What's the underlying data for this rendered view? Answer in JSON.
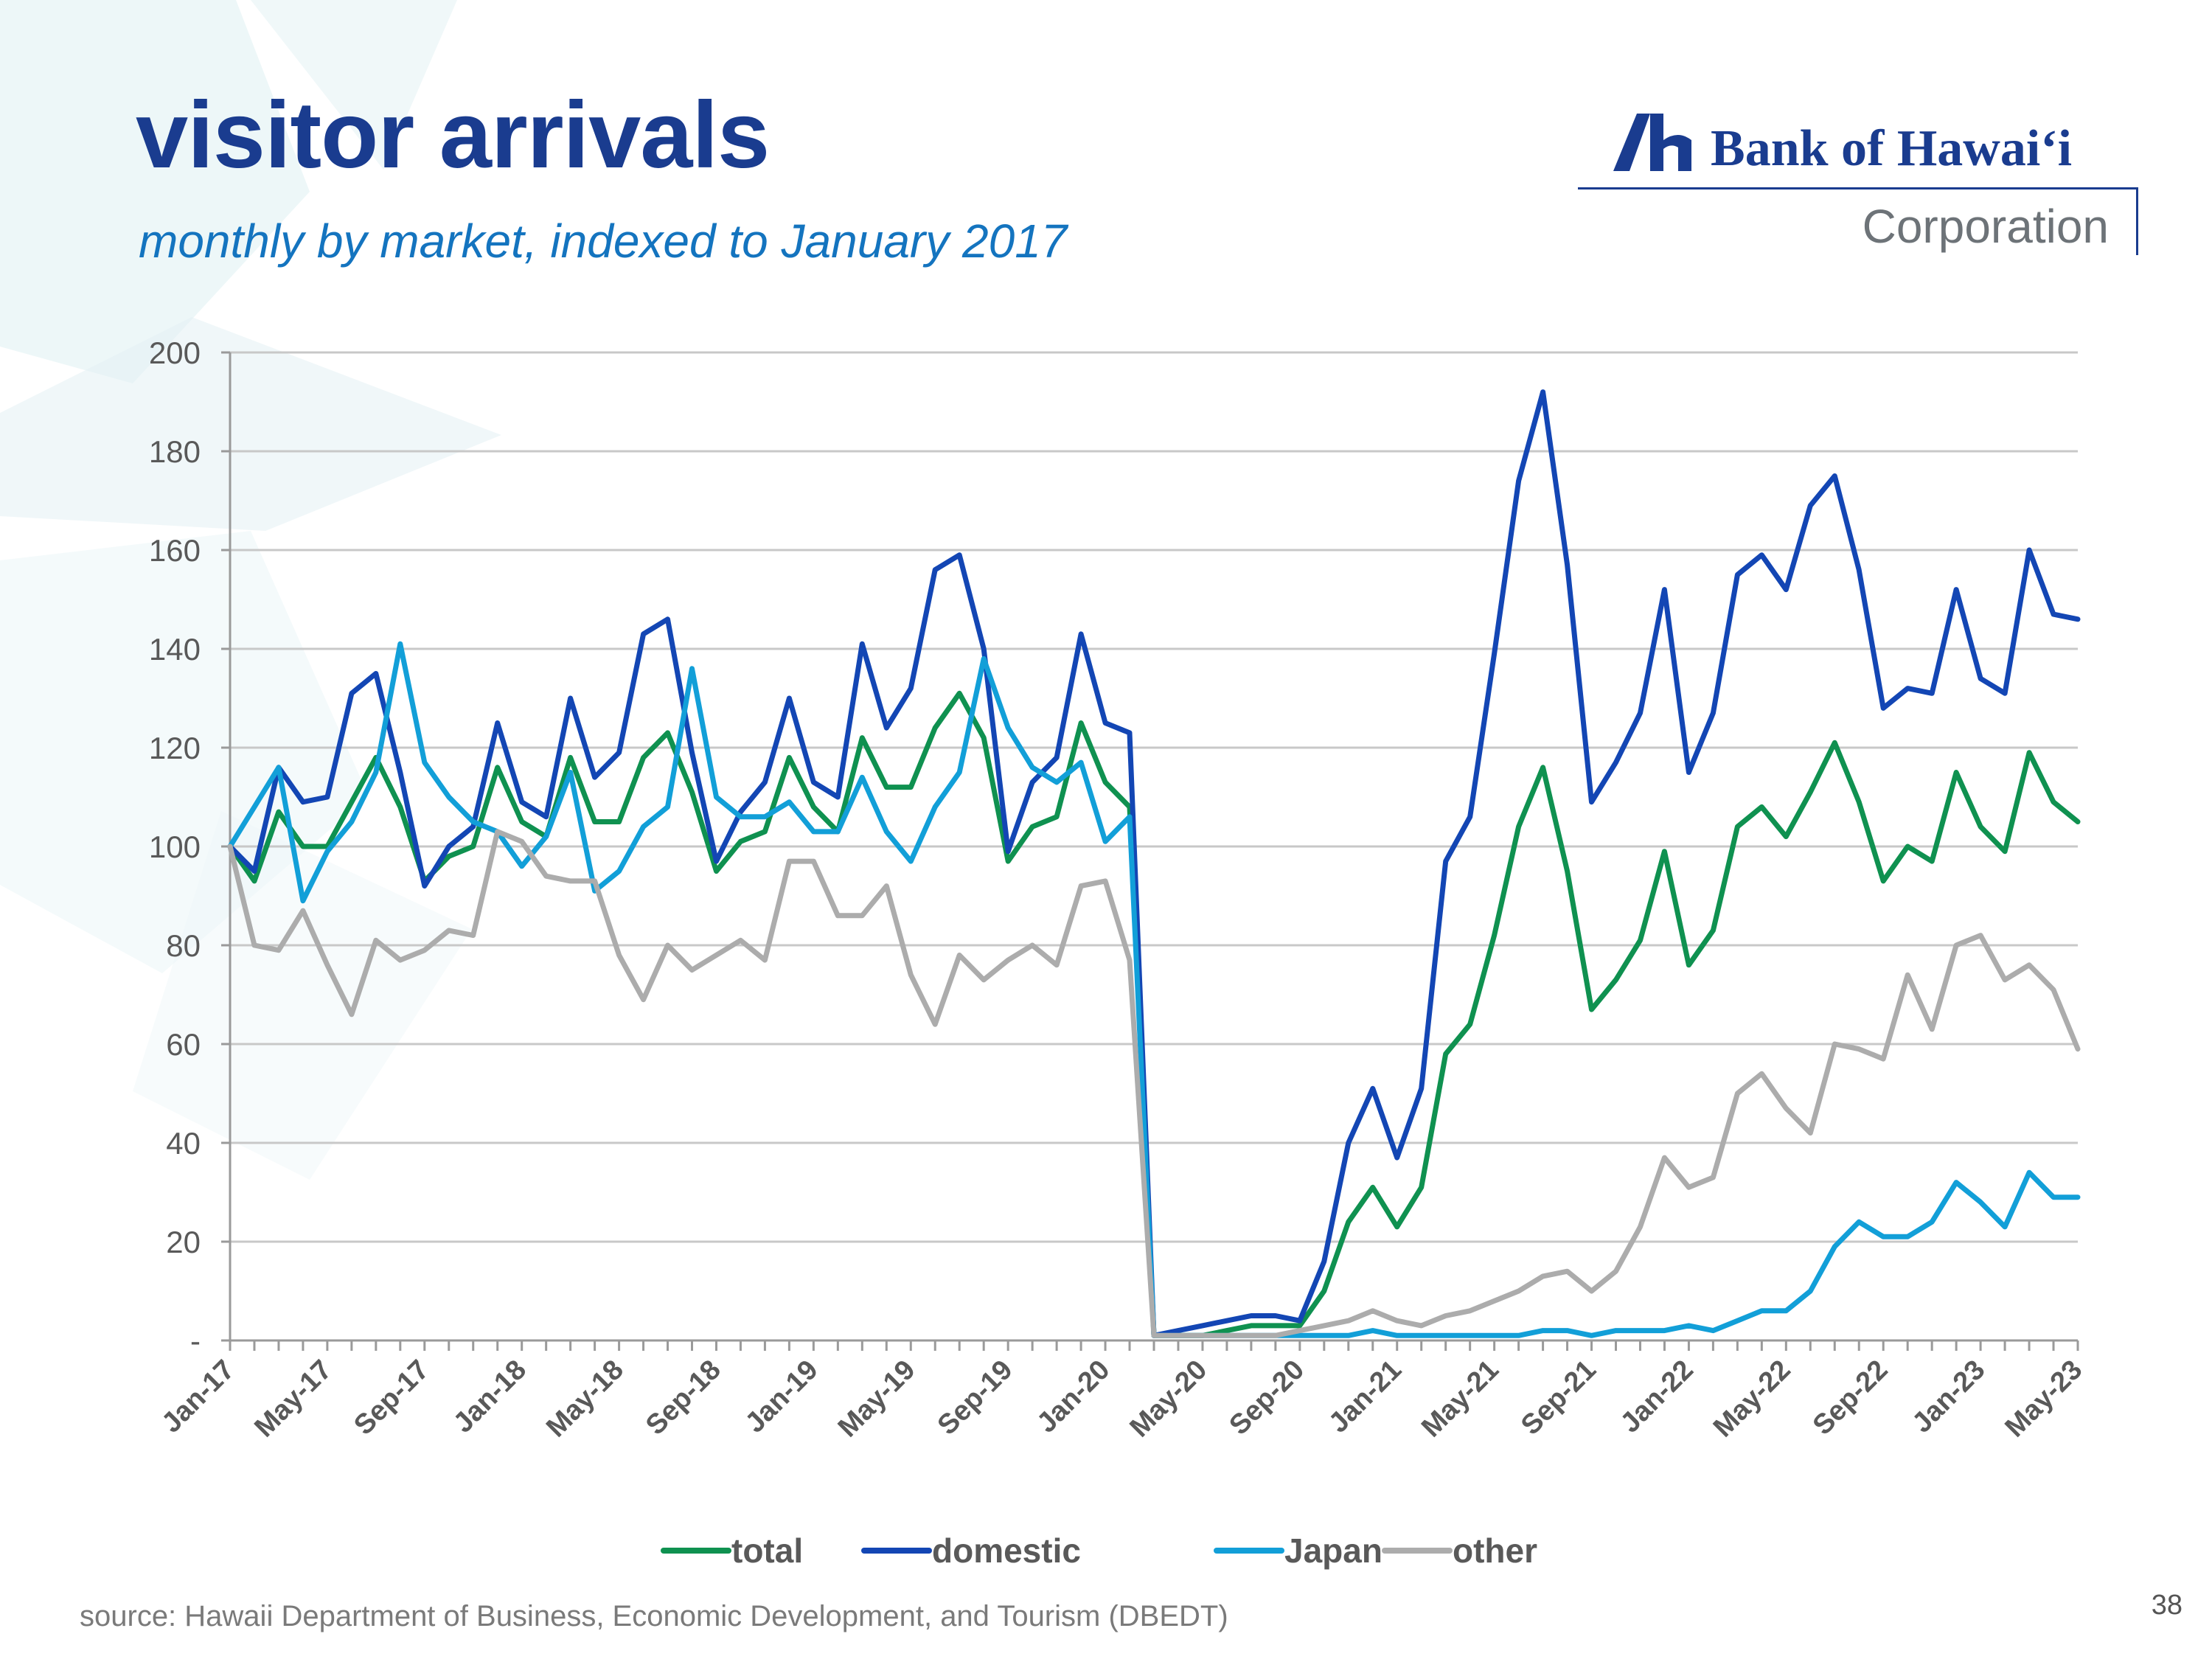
{
  "slide": {
    "title": "visitor arrivals",
    "subtitle": "monthly by market, indexed to January 2017",
    "source": "source: Hawaii Department of Business, Economic Development, and Tourism (DBEDT)",
    "page_number": "38"
  },
  "logo": {
    "name": "Bank of Hawaiʻi",
    "corporation": "Corporation",
    "color": "#1a3c8f"
  },
  "chart_data": {
    "type": "line",
    "title": "",
    "xlabel": "",
    "ylabel": "",
    "ylim": [
      0,
      200
    ],
    "yticks": [
      0,
      20,
      40,
      60,
      80,
      100,
      120,
      140,
      160,
      180,
      200
    ],
    "ytick_labels": [
      "-",
      "20",
      "40",
      "60",
      "80",
      "100",
      "120",
      "140",
      "160",
      "180",
      "200"
    ],
    "xtick_labels": [
      "Jan-17",
      "May-17",
      "Sep-17",
      "Jan-18",
      "May-18",
      "Sep-18",
      "Jan-19",
      "May-19",
      "Sep-19",
      "Jan-20",
      "May-20",
      "Sep-20",
      "Jan-21",
      "May-21",
      "Sep-21",
      "Jan-22",
      "May-22",
      "Sep-22",
      "Jan-23",
      "May-23"
    ],
    "xtick_every": 4,
    "grid": true,
    "legend_position": "bottom",
    "series": [
      {
        "name": "total",
        "color": "#0f9150",
        "values": [
          100,
          93,
          107,
          100,
          100,
          109,
          118,
          108,
          93,
          98,
          100,
          116,
          105,
          102,
          118,
          105,
          105,
          118,
          123,
          111,
          95,
          101,
          103,
          118,
          108,
          103,
          122,
          112,
          112,
          124,
          131,
          122,
          97,
          104,
          106,
          125,
          113,
          108,
          1,
          1,
          1,
          2,
          3,
          3,
          3,
          10,
          24,
          31,
          23,
          31,
          58,
          64,
          82,
          104,
          116,
          95,
          67,
          73,
          81,
          99,
          76,
          83,
          104,
          108,
          102,
          111,
          121,
          109,
          93,
          100,
          97,
          115,
          104,
          99,
          119,
          109,
          105
        ]
      },
      {
        "name": "domestic",
        "color": "#1346b4",
        "values": [
          100,
          95,
          116,
          109,
          110,
          131,
          135,
          115,
          92,
          100,
          104,
          125,
          109,
          106,
          130,
          114,
          119,
          143,
          146,
          119,
          97,
          107,
          113,
          130,
          113,
          110,
          141,
          124,
          132,
          156,
          159,
          140,
          99,
          113,
          118,
          143,
          125,
          123,
          1,
          2,
          3,
          4,
          5,
          5,
          4,
          16,
          40,
          51,
          37,
          51,
          97,
          106,
          139,
          174,
          192,
          157,
          109,
          117,
          127,
          152,
          115,
          127,
          155,
          159,
          152,
          169,
          175,
          156,
          128,
          132,
          131,
          152,
          134,
          131,
          160,
          147,
          146
        ]
      },
      {
        "name": "Japan",
        "color": "#129fd8",
        "values": [
          100,
          108,
          116,
          89,
          99,
          105,
          115,
          141,
          117,
          110,
          105,
          103,
          96,
          102,
          115,
          91,
          95,
          104,
          108,
          136,
          110,
          106,
          106,
          109,
          103,
          103,
          114,
          103,
          97,
          108,
          115,
          138,
          124,
          116,
          113,
          117,
          101,
          106,
          1,
          1,
          1,
          1,
          1,
          1,
          1,
          1,
          1,
          2,
          1,
          1,
          1,
          1,
          1,
          1,
          2,
          2,
          1,
          2,
          2,
          2,
          3,
          2,
          4,
          6,
          6,
          10,
          19,
          24,
          21,
          21,
          24,
          32,
          28,
          23,
          34,
          29,
          29
        ]
      },
      {
        "name": "other",
        "color": "#acacac",
        "values": [
          100,
          80,
          79,
          87,
          76,
          66,
          81,
          77,
          79,
          83,
          82,
          103,
          101,
          94,
          93,
          93,
          78,
          69,
          80,
          75,
          78,
          81,
          77,
          97,
          97,
          86,
          86,
          92,
          74,
          64,
          78,
          73,
          77,
          80,
          76,
          92,
          93,
          77,
          1,
          1,
          1,
          1,
          1,
          1,
          2,
          3,
          4,
          6,
          4,
          3,
          5,
          6,
          8,
          10,
          13,
          14,
          10,
          14,
          23,
          37,
          31,
          33,
          50,
          54,
          47,
          42,
          60,
          59,
          57,
          74,
          63,
          80,
          82,
          73,
          76,
          71,
          59
        ]
      }
    ]
  }
}
